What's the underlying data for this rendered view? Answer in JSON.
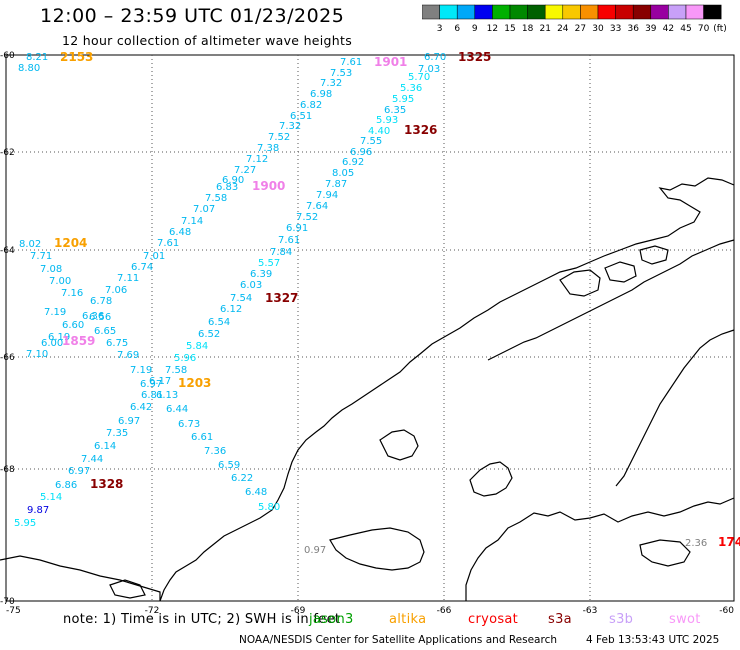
{
  "header": {
    "title": "12:00 – 23:59 UTC 01/23/2025",
    "subtitle": "12 hour collection of altimeter wave heights"
  },
  "colorbar": {
    "ticks": [
      "3",
      "6",
      "9",
      "12",
      "15",
      "18",
      "21",
      "24",
      "27",
      "30",
      "33",
      "36",
      "39",
      "42",
      "45",
      "70"
    ],
    "unit": "(ft)",
    "colors": [
      "#808080",
      "#00e8f8",
      "#00a8f8",
      "#0000f0",
      "#00b000",
      "#008800",
      "#006000",
      "#f8f800",
      "#f8c800",
      "#f89000",
      "#f80000",
      "#c80000",
      "#880000",
      "#9800a0",
      "#c8a0f8",
      "#f898f8",
      "#000000"
    ]
  },
  "axes": {
    "lat_labels": [
      "-60",
      "-62",
      "-64",
      "-66",
      "-68",
      "-70"
    ],
    "lon_labels": [
      "-75",
      "-72",
      "-69",
      "-66",
      "-63",
      "-60"
    ]
  },
  "track_points": [
    {
      "v": "8.21",
      "c": "#00b8f0"
    },
    {
      "v": "8.80",
      "c": "#00b8f0"
    },
    {
      "v": "7.61",
      "c": "#00b8f0"
    },
    {
      "v": "7.53",
      "c": "#00b8f0"
    },
    {
      "v": "7.32",
      "c": "#00b8f0"
    },
    {
      "v": "6.98",
      "c": "#00b8f0"
    },
    {
      "v": "6.82",
      "c": "#00b8f0"
    },
    {
      "v": "6.51",
      "c": "#00b8f0"
    },
    {
      "v": "7.32",
      "c": "#00b8f0"
    },
    {
      "v": "7.52",
      "c": "#00b8f0"
    },
    {
      "v": "7.38",
      "c": "#00b8f0"
    },
    {
      "v": "7.12",
      "c": "#00b8f0"
    },
    {
      "v": "7.27",
      "c": "#00b8f0"
    },
    {
      "v": "6.90",
      "c": "#00b8f0"
    },
    {
      "v": "6.83",
      "c": "#00b8f0"
    },
    {
      "v": "7.58",
      "c": "#00b8f0"
    },
    {
      "v": "7.07",
      "c": "#00b8f0"
    },
    {
      "v": "7.14",
      "c": "#00b8f0"
    },
    {
      "v": "6.48",
      "c": "#00b8f0"
    },
    {
      "v": "7.61",
      "c": "#00b8f0"
    },
    {
      "v": "7.01",
      "c": "#00b8f0"
    },
    {
      "v": "6.74",
      "c": "#00b8f0"
    },
    {
      "v": "7.11",
      "c": "#00b8f0"
    },
    {
      "v": "7.06",
      "c": "#00b8f0"
    },
    {
      "v": "6.78",
      "c": "#00b8f0"
    },
    {
      "v": "7.19",
      "c": "#00b8f0"
    },
    {
      "v": "6.36",
      "c": "#00b8f0"
    },
    {
      "v": "6.56",
      "c": "#00b8f0"
    },
    {
      "v": "6.60",
      "c": "#00b8f0"
    },
    {
      "v": "6.19",
      "c": "#00b8f0"
    },
    {
      "v": "6.00",
      "c": "#00b8f0"
    },
    {
      "v": "7.10",
      "c": "#00b8f0"
    },
    {
      "v": "8.02",
      "c": "#00b8f0"
    },
    {
      "v": "7.71",
      "c": "#00b8f0"
    },
    {
      "v": "7.08",
      "c": "#00b8f0"
    },
    {
      "v": "7.00",
      "c": "#00b8f0"
    },
    {
      "v": "7.16",
      "c": "#00b8f0"
    },
    {
      "v": "6.65",
      "c": "#00b8f0"
    },
    {
      "v": "6.75",
      "c": "#00b8f0"
    },
    {
      "v": "7.69",
      "c": "#00b8f0"
    },
    {
      "v": "7.19",
      "c": "#00b8f0"
    },
    {
      "v": "7.58",
      "c": "#00b8f0"
    },
    {
      "v": "6.97",
      "c": "#00b8f0"
    },
    {
      "v": "6.17",
      "c": "#00b8f0"
    },
    {
      "v": "6.81",
      "c": "#00b8f0"
    },
    {
      "v": "6.13",
      "c": "#00b8f0"
    },
    {
      "v": "6.42",
      "c": "#00b8f0"
    },
    {
      "v": "6.44",
      "c": "#00b8f0"
    },
    {
      "v": "6.97",
      "c": "#00b8f0"
    },
    {
      "v": "6.73",
      "c": "#00b8f0"
    },
    {
      "v": "7.35",
      "c": "#00b8f0"
    },
    {
      "v": "6.61",
      "c": "#00b8f0"
    },
    {
      "v": "6.14",
      "c": "#00b8f0"
    },
    {
      "v": "7.36",
      "c": "#00b8f0"
    },
    {
      "v": "7.44",
      "c": "#00b8f0"
    },
    {
      "v": "6.59",
      "c": "#00b8f0"
    },
    {
      "v": "6.97",
      "c": "#00b8f0"
    },
    {
      "v": "6.22",
      "c": "#00b8f0"
    },
    {
      "v": "6.86",
      "c": "#00b8f0"
    },
    {
      "v": "6.48",
      "c": "#00b8f0"
    },
    {
      "v": "5.14",
      "c": "#00e0f8"
    },
    {
      "v": "5.80",
      "c": "#00e0f8"
    },
    {
      "v": "9.87",
      "c": "#0000e0"
    },
    {
      "v": "5.95",
      "c": "#00e0f8"
    },
    {
      "v": "6.70",
      "c": "#00b8f0"
    },
    {
      "v": "7.03",
      "c": "#00b8f0"
    },
    {
      "v": "5.70",
      "c": "#00e0f8"
    },
    {
      "v": "5.36",
      "c": "#00e0f8"
    },
    {
      "v": "5.95",
      "c": "#00e0f8"
    },
    {
      "v": "6.35",
      "c": "#00b8f0"
    },
    {
      "v": "5.93",
      "c": "#00e0f8"
    },
    {
      "v": "4.40",
      "c": "#00e0f8"
    },
    {
      "v": "7.55",
      "c": "#00b8f0"
    },
    {
      "v": "6.96",
      "c": "#00b8f0"
    },
    {
      "v": "6.92",
      "c": "#00b8f0"
    },
    {
      "v": "8.05",
      "c": "#00b8f0"
    },
    {
      "v": "7.87",
      "c": "#00b8f0"
    },
    {
      "v": "7.94",
      "c": "#00b8f0"
    },
    {
      "v": "7.64",
      "c": "#00b8f0"
    },
    {
      "v": "7.52",
      "c": "#00b8f0"
    },
    {
      "v": "6.91",
      "c": "#00b8f0"
    },
    {
      "v": "7.61",
      "c": "#00b8f0"
    },
    {
      "v": "7.84",
      "c": "#00b8f0"
    },
    {
      "v": "5.57",
      "c": "#00e0f8"
    },
    {
      "v": "6.39",
      "c": "#00b8f0"
    },
    {
      "v": "6.03",
      "c": "#00b8f0"
    },
    {
      "v": "7.54",
      "c": "#00b8f0"
    },
    {
      "v": "6.12",
      "c": "#00b8f0"
    },
    {
      "v": "6.54",
      "c": "#00b8f0"
    },
    {
      "v": "6.52",
      "c": "#00b8f0"
    },
    {
      "v": "5.84",
      "c": "#00e0f8"
    },
    {
      "v": "5.96",
      "c": "#00e0f8"
    },
    {
      "v": "0.97",
      "c": "#808080"
    },
    {
      "v": "2.36",
      "c": "#808080"
    }
  ],
  "pass_times": [
    {
      "t": "2153",
      "c": "#f8a000"
    },
    {
      "t": "1901",
      "c": "#f080e8"
    },
    {
      "t": "1325",
      "c": "#880000"
    },
    {
      "t": "1326",
      "c": "#880000"
    },
    {
      "t": "1900",
      "c": "#f080e8"
    },
    {
      "t": "1204",
      "c": "#f8a000"
    },
    {
      "t": "1327",
      "c": "#880000"
    },
    {
      "t": "1859",
      "c": "#f080e8"
    },
    {
      "t": "1203",
      "c": "#f8a000"
    },
    {
      "t": "1328",
      "c": "#880000"
    },
    {
      "t": "174",
      "c": "#f80000"
    }
  ],
  "legend": {
    "note": "note:  1) Time is in UTC; 2) SWH is in feet",
    "satellites": [
      {
        "name": "jason3",
        "color": "#00a000"
      },
      {
        "name": "altika",
        "color": "#f8a000"
      },
      {
        "name": "cryosat",
        "color": "#f80000"
      },
      {
        "name": "s3a",
        "color": "#880000"
      },
      {
        "name": "s3b",
        "color": "#c8a0f8"
      },
      {
        "name": "swot",
        "color": "#f898f8"
      }
    ]
  },
  "footer": {
    "credit": "NOAA/NESDIS Center for Satellite Applications and Research",
    "timestamp": "4 Feb 13:53:43 UTC 2025"
  }
}
